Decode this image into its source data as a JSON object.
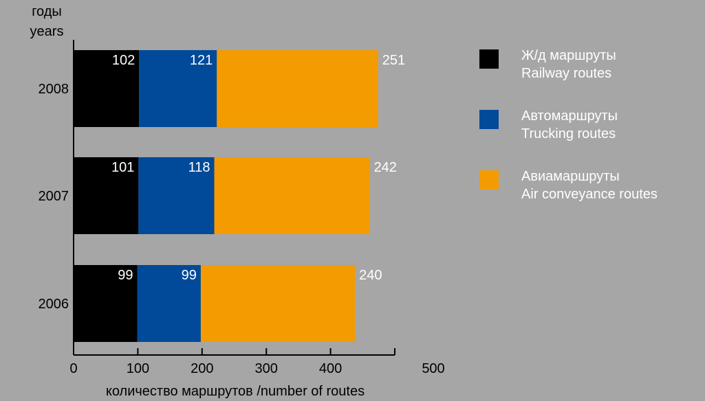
{
  "chart_data": {
    "type": "bar",
    "orientation": "horizontal",
    "stacked": true,
    "y_title": [
      "годы",
      "years"
    ],
    "xlabel": "количество маршрутов /number of routes",
    "xlim": [
      0,
      500
    ],
    "x_ticks": [
      0,
      100,
      200,
      300,
      400,
      500
    ],
    "categories": [
      "2008",
      "2007",
      "2006"
    ],
    "series": [
      {
        "key": "rail",
        "name": "Ж/д маршруты",
        "name_en": "Railway routes",
        "color": "#000000",
        "values": [
          102,
          101,
          99
        ]
      },
      {
        "key": "truck",
        "name": "Автомаршруты",
        "name_en": "Trucking routes",
        "color": "#004a99",
        "values": [
          121,
          118,
          99
        ]
      },
      {
        "key": "air",
        "name": "Авиамаршруты",
        "name_en": "Air conveyance routes",
        "color": "#f39b00",
        "values": [
          251,
          242,
          240
        ]
      }
    ],
    "grid": false,
    "legend": "right"
  }
}
